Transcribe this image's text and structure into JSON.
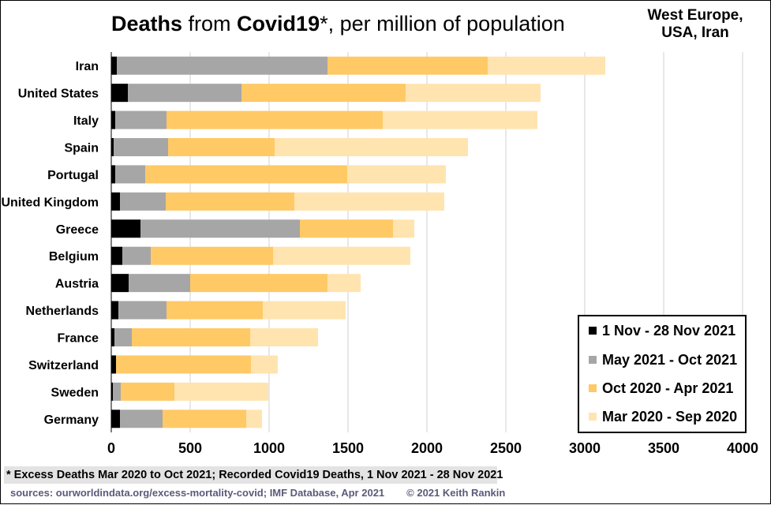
{
  "title": {
    "bold1": "Deaths",
    "mid": " from ",
    "bold2": "Covid19",
    "rest": "*, per million of population"
  },
  "region_line1": "West Europe,",
  "region_line2": "USA, Iran",
  "footnote": "* Excess Deaths Mar 2020 to Oct 2021; Recorded Covid19 Deaths, 1 Nov 2021 - 28 Nov 2021",
  "sources": "sources:  ourworldindata.org/excess-mortality-covid;   IMF Database,  Apr 2021",
  "copyright": "© 2021 Keith Rankin",
  "chart_data": {
    "type": "bar",
    "orientation": "horizontal",
    "stacked": true,
    "xlim": [
      0,
      4000
    ],
    "xticks": [
      0,
      500,
      1000,
      1500,
      2000,
      2500,
      3000,
      3500,
      4000
    ],
    "grid": true,
    "legend_position": "bottom-right",
    "categories": [
      "Iran",
      "United States",
      "Italy",
      "Spain",
      "Portugal",
      "United Kingdom",
      "Greece",
      "Belgium",
      "Austria",
      "Netherlands",
      "France",
      "Switzerland",
      "Sweden",
      "Germany"
    ],
    "series": [
      {
        "name": "1 Nov - 28 Nov 2021",
        "color": "#000000",
        "values": [
          35,
          105,
          25,
          15,
          25,
          55,
          185,
          70,
          110,
          45,
          20,
          30,
          10,
          55
        ]
      },
      {
        "name": "May 2021 - Oct 2021",
        "color": "#a6a6a6",
        "values": [
          1335,
          720,
          325,
          345,
          190,
          290,
          1010,
          180,
          390,
          305,
          110,
          0,
          50,
          270
        ]
      },
      {
        "name": "Oct 2020 - Apr 2021",
        "color": "#ffc966",
        "values": [
          1015,
          1040,
          1370,
          675,
          1280,
          815,
          590,
          775,
          870,
          610,
          750,
          855,
          340,
          530
        ]
      },
      {
        "name": "Mar 2020 - Sep 2020",
        "color": "#ffe4b0",
        "values": [
          745,
          855,
          980,
          1225,
          625,
          950,
          135,
          870,
          210,
          525,
          430,
          170,
          595,
          100
        ]
      }
    ]
  }
}
